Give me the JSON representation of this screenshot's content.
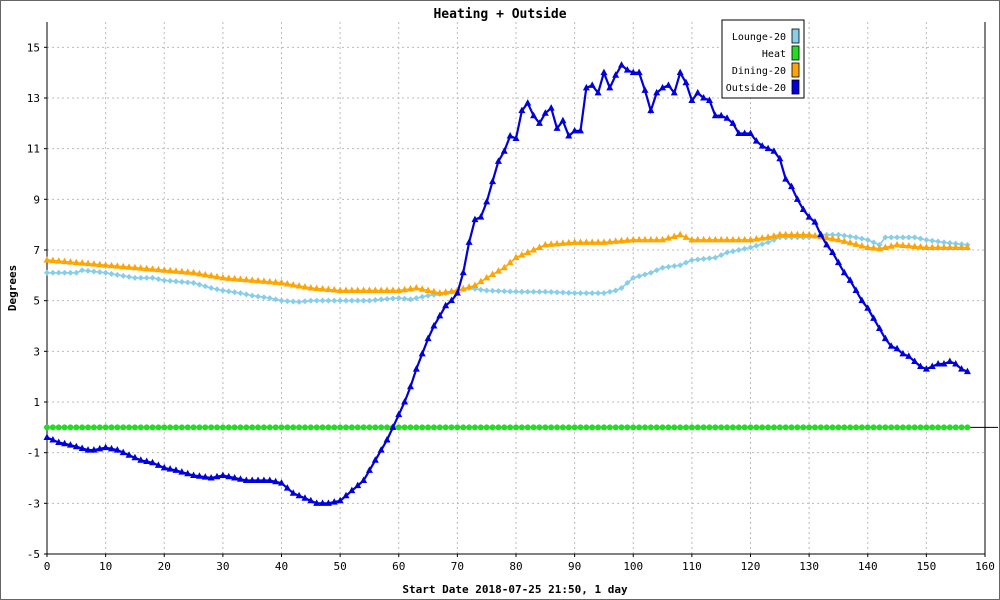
{
  "chart_data": {
    "type": "line",
    "title": "Heating + Outside",
    "xlabel": "Start Date 2018-07-25 21:50, 1 day",
    "ylabel": "Degrees",
    "xlim": [
      0,
      160
    ],
    "ylim": [
      -5,
      16
    ],
    "x_ticks": [
      0,
      10,
      20,
      30,
      40,
      50,
      60,
      70,
      80,
      90,
      100,
      110,
      120,
      130,
      140,
      150,
      160
    ],
    "y_ticks": [
      -5,
      -3,
      -1,
      1,
      3,
      5,
      7,
      9,
      11,
      13,
      15
    ],
    "grid": true,
    "legend_position": "top-right",
    "series": [
      {
        "name": "Lounge-20",
        "color": "#87ceeb",
        "marker": "diamond",
        "points": [
          [
            0,
            6.1
          ],
          [
            5,
            6.1
          ],
          [
            6,
            6.2
          ],
          [
            10,
            6.1
          ],
          [
            15,
            5.9
          ],
          [
            18,
            5.9
          ],
          [
            20,
            5.8
          ],
          [
            25,
            5.7
          ],
          [
            28,
            5.5
          ],
          [
            30,
            5.4
          ],
          [
            33,
            5.3
          ],
          [
            35,
            5.2
          ],
          [
            38,
            5.1
          ],
          [
            40,
            5.0
          ],
          [
            43,
            4.95
          ],
          [
            45,
            5.0
          ],
          [
            50,
            5.0
          ],
          [
            55,
            5.0
          ],
          [
            57,
            5.05
          ],
          [
            60,
            5.1
          ],
          [
            62,
            5.05
          ],
          [
            65,
            5.2
          ],
          [
            68,
            5.3
          ],
          [
            72,
            5.5
          ],
          [
            75,
            5.4
          ],
          [
            80,
            5.35
          ],
          [
            85,
            5.35
          ],
          [
            90,
            5.3
          ],
          [
            95,
            5.3
          ],
          [
            97,
            5.4
          ],
          [
            98,
            5.5
          ],
          [
            100,
            5.9
          ],
          [
            103,
            6.1
          ],
          [
            105,
            6.3
          ],
          [
            108,
            6.4
          ],
          [
            110,
            6.6
          ],
          [
            114,
            6.7
          ],
          [
            116,
            6.9
          ],
          [
            120,
            7.1
          ],
          [
            123,
            7.3
          ],
          [
            125,
            7.5
          ],
          [
            130,
            7.5
          ],
          [
            132,
            7.6
          ],
          [
            135,
            7.6
          ],
          [
            138,
            7.5
          ],
          [
            140,
            7.4
          ],
          [
            142,
            7.2
          ],
          [
            143,
            7.5
          ],
          [
            148,
            7.5
          ],
          [
            150,
            7.4
          ],
          [
            153,
            7.3
          ],
          [
            157,
            7.2
          ]
        ]
      },
      {
        "name": "Heat",
        "color": "#22dd22",
        "marker": "circle",
        "points": [
          [
            0,
            0
          ],
          [
            157,
            0
          ]
        ]
      },
      {
        "name": "Dining-20",
        "color": "#ffa500",
        "marker": "triangle",
        "points": [
          [
            0,
            6.6
          ],
          [
            5,
            6.5
          ],
          [
            10,
            6.4
          ],
          [
            15,
            6.3
          ],
          [
            20,
            6.2
          ],
          [
            25,
            6.1
          ],
          [
            30,
            5.9
          ],
          [
            35,
            5.8
          ],
          [
            40,
            5.7
          ],
          [
            45,
            5.5
          ],
          [
            50,
            5.4
          ],
          [
            55,
            5.4
          ],
          [
            60,
            5.4
          ],
          [
            63,
            5.5
          ],
          [
            65,
            5.4
          ],
          [
            67,
            5.3
          ],
          [
            70,
            5.4
          ],
          [
            73,
            5.6
          ],
          [
            75,
            5.9
          ],
          [
            78,
            6.3
          ],
          [
            80,
            6.7
          ],
          [
            83,
            7.0
          ],
          [
            85,
            7.2
          ],
          [
            90,
            7.3
          ],
          [
            95,
            7.3
          ],
          [
            100,
            7.4
          ],
          [
            105,
            7.4
          ],
          [
            108,
            7.6
          ],
          [
            110,
            7.4
          ],
          [
            115,
            7.4
          ],
          [
            120,
            7.4
          ],
          [
            123,
            7.5
          ],
          [
            125,
            7.6
          ],
          [
            130,
            7.6
          ],
          [
            135,
            7.4
          ],
          [
            140,
            7.1
          ],
          [
            142,
            7.05
          ],
          [
            145,
            7.2
          ],
          [
            150,
            7.1
          ],
          [
            153,
            7.1
          ],
          [
            157,
            7.1
          ]
        ]
      },
      {
        "name": "Outside-20",
        "color": "#0000dd",
        "marker": "triangle",
        "points": [
          [
            0,
            -0.4
          ],
          [
            2,
            -0.6
          ],
          [
            4,
            -0.7
          ],
          [
            7,
            -0.9
          ],
          [
            8,
            -0.9
          ],
          [
            10,
            -0.8
          ],
          [
            12,
            -0.9
          ],
          [
            14,
            -1.1
          ],
          [
            16,
            -1.3
          ],
          [
            18,
            -1.4
          ],
          [
            20,
            -1.6
          ],
          [
            22,
            -1.7
          ],
          [
            25,
            -1.9
          ],
          [
            28,
            -2.0
          ],
          [
            30,
            -1.9
          ],
          [
            32,
            -2.0
          ],
          [
            34,
            -2.1
          ],
          [
            36,
            -2.1
          ],
          [
            38,
            -2.1
          ],
          [
            40,
            -2.2
          ],
          [
            42,
            -2.6
          ],
          [
            44,
            -2.8
          ],
          [
            46,
            -3.0
          ],
          [
            48,
            -3.0
          ],
          [
            50,
            -2.9
          ],
          [
            52,
            -2.5
          ],
          [
            54,
            -2.1
          ],
          [
            56,
            -1.3
          ],
          [
            58,
            -0.5
          ],
          [
            60,
            0.5
          ],
          [
            61,
            1.0
          ],
          [
            62,
            1.6
          ],
          [
            63,
            2.3
          ],
          [
            64,
            2.9
          ],
          [
            65,
            3.5
          ],
          [
            66,
            4.0
          ],
          [
            67,
            4.4
          ],
          [
            68,
            4.8
          ],
          [
            69,
            5.0
          ],
          [
            70,
            5.3
          ],
          [
            71,
            6.1
          ],
          [
            72,
            7.3
          ],
          [
            73,
            8.2
          ],
          [
            74,
            8.3
          ],
          [
            75,
            8.9
          ],
          [
            76,
            9.7
          ],
          [
            77,
            10.5
          ],
          [
            78,
            10.9
          ],
          [
            79,
            11.5
          ],
          [
            80,
            11.4
          ],
          [
            81,
            12.5
          ],
          [
            82,
            12.8
          ],
          [
            83,
            12.3
          ],
          [
            84,
            12.0
          ],
          [
            85,
            12.4
          ],
          [
            86,
            12.6
          ],
          [
            87,
            11.8
          ],
          [
            88,
            12.1
          ],
          [
            89,
            11.5
          ],
          [
            90,
            11.7
          ],
          [
            91,
            11.7
          ],
          [
            92,
            13.4
          ],
          [
            93,
            13.5
          ],
          [
            94,
            13.2
          ],
          [
            95,
            14.0
          ],
          [
            96,
            13.4
          ],
          [
            97,
            13.9
          ],
          [
            98,
            14.3
          ],
          [
            99,
            14.1
          ],
          [
            100,
            14.0
          ],
          [
            101,
            14.0
          ],
          [
            102,
            13.3
          ],
          [
            103,
            12.5
          ],
          [
            104,
            13.2
          ],
          [
            105,
            13.4
          ],
          [
            106,
            13.5
          ],
          [
            107,
            13.2
          ],
          [
            108,
            14.0
          ],
          [
            109,
            13.6
          ],
          [
            110,
            12.9
          ],
          [
            111,
            13.2
          ],
          [
            112,
            13.0
          ],
          [
            113,
            12.9
          ],
          [
            114,
            12.3
          ],
          [
            115,
            12.3
          ],
          [
            116,
            12.2
          ],
          [
            117,
            12.0
          ],
          [
            118,
            11.6
          ],
          [
            119,
            11.6
          ],
          [
            120,
            11.6
          ],
          [
            121,
            11.3
          ],
          [
            122,
            11.1
          ],
          [
            123,
            11.0
          ],
          [
            124,
            10.9
          ],
          [
            125,
            10.6
          ],
          [
            126,
            9.8
          ],
          [
            127,
            9.5
          ],
          [
            128,
            9.0
          ],
          [
            129,
            8.6
          ],
          [
            130,
            8.3
          ],
          [
            131,
            8.1
          ],
          [
            132,
            7.6
          ],
          [
            133,
            7.2
          ],
          [
            134,
            6.9
          ],
          [
            135,
            6.5
          ],
          [
            136,
            6.1
          ],
          [
            137,
            5.8
          ],
          [
            138,
            5.4
          ],
          [
            139,
            5.0
          ],
          [
            140,
            4.7
          ],
          [
            141,
            4.3
          ],
          [
            142,
            3.9
          ],
          [
            143,
            3.5
          ],
          [
            144,
            3.2
          ],
          [
            145,
            3.1
          ],
          [
            146,
            2.9
          ],
          [
            147,
            2.8
          ],
          [
            148,
            2.6
          ],
          [
            149,
            2.4
          ],
          [
            150,
            2.3
          ],
          [
            151,
            2.4
          ],
          [
            152,
            2.5
          ],
          [
            153,
            2.5
          ],
          [
            154,
            2.6
          ],
          [
            155,
            2.5
          ],
          [
            156,
            2.3
          ],
          [
            157,
            2.2
          ]
        ]
      }
    ]
  }
}
